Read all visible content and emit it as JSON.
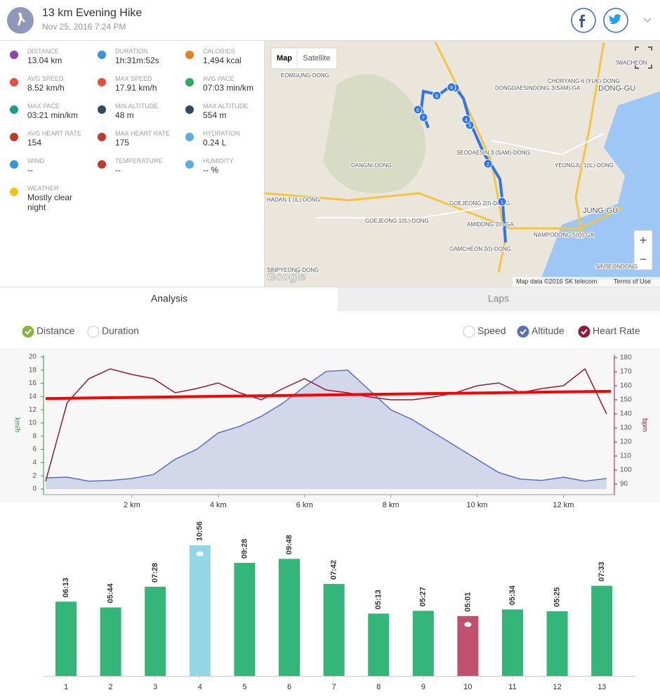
{
  "header": {
    "title": "13 km Evening Hike",
    "date": "Nov 25, 2016 7:24 PM"
  },
  "stats": [
    {
      "label": "DISTANCE",
      "value": "13.04 km"
    },
    {
      "label": "DURATION",
      "value": "1h:31m:52s"
    },
    {
      "label": "CALORIES",
      "value": "1,494 kcal"
    },
    {
      "label": "AVG SPEED",
      "value": "8.52 km/h"
    },
    {
      "label": "MAX SPEED",
      "value": "17.91 km/h"
    },
    {
      "label": "AVG PACE",
      "value": "07:03 min/km"
    },
    {
      "label": "MAX PACE",
      "value": "03:21 min/km"
    },
    {
      "label": "MIN ALTITUDE",
      "value": "48 m"
    },
    {
      "label": "MAX ALTITUDE",
      "value": "554 m"
    },
    {
      "label": "AVG HEART RATE",
      "value": "154"
    },
    {
      "label": "MAX HEART RATE",
      "value": "175"
    },
    {
      "label": "HYDRATION",
      "value": "0.24 L"
    },
    {
      "label": "WIND",
      "value": "--"
    },
    {
      "label": "TEMPERATURE",
      "value": "--"
    },
    {
      "label": "HUMIDITY",
      "value": "-- %"
    },
    {
      "label": "WEATHER",
      "value": "Mostly clear night"
    }
  ],
  "map": {
    "tabs": [
      "Map",
      "Satellite"
    ],
    "labels": [
      "EOMGUNG-DONG",
      "DANGNI-DONG",
      "DONGDAESINDONG 3(SAM)-GA",
      "CHORYANG 6 (YUK)-DONG",
      "DONG-GU",
      "SEODAESIN 3 (SAM)-DONG",
      "YEONGJU 1(IL)-DONG",
      "JUNG-GU",
      "HADAN 1 (IL)-DONG",
      "GOEJEONG 2(I)-DONG",
      "GOEJEONG 1(IL)-DONG",
      "AMIDONG 2(I)-GA",
      "NAMPODONG 5(O)-GA",
      "GAMCHEON 2(I)-DONG",
      "SINPYEONG-DONG",
      "SINSEONDONG",
      "JWACHEON"
    ],
    "markers": [
      "1",
      "2",
      "3",
      "4",
      "5",
      "6",
      "7",
      "8",
      "9"
    ],
    "logo": "Google",
    "attribution": "Map data ©2016 SK telecom",
    "terms": "Terms of Use",
    "zoom_in": "+",
    "zoom_out": "−"
  },
  "tabs": [
    "Analysis",
    "Laps"
  ],
  "toggles": [
    "Distance",
    "Duration",
    "Speed"
  ],
  "chart_data": [
    {
      "type": "line",
      "x": [
        0,
        0.5,
        1,
        1.5,
        2,
        2.5,
        3,
        3.5,
        4,
        4.5,
        5,
        5.5,
        6,
        6.5,
        7,
        7.5,
        8,
        8.5,
        9,
        9.5,
        10,
        10.5,
        11,
        11.5,
        12,
        12.5,
        13
      ],
      "xlim": [
        0,
        13.1
      ],
      "xticks": [
        {
          "value": 2,
          "label": "2 km"
        },
        {
          "value": 4,
          "label": "4 km"
        },
        {
          "value": 6,
          "label": "6 km"
        },
        {
          "value": 8,
          "label": "8 km"
        },
        {
          "value": 10,
          "label": "10 km"
        },
        {
          "value": 12,
          "label": "12 km"
        }
      ],
      "ylim": [
        0,
        20
      ],
      "yticks": [
        0,
        2,
        4,
        6,
        8,
        10,
        12,
        14,
        16,
        18,
        20
      ],
      "y2lim": [
        90,
        180
      ],
      "y2ticks": [
        90,
        100,
        110,
        120,
        130,
        140,
        150,
        160,
        170,
        180
      ],
      "ylabel": "km/h",
      "y2label": "bpm",
      "series": [
        {
          "name": "Altitude",
          "color": "#5b72b5",
          "fill": "#d3d7ea",
          "values": [
            1.7,
            1.8,
            1.2,
            1.3,
            1.6,
            2.2,
            4.5,
            6,
            8.5,
            9.5,
            11,
            13,
            15.5,
            17.8,
            18,
            15,
            12,
            10.5,
            8.5,
            6.5,
            4.5,
            2.5,
            1.5,
            1.3,
            1.8,
            1.2,
            1.6
          ]
        },
        {
          "name": "Heart Rate",
          "color": "#8e1c3c",
          "axis": "y2",
          "values": [
            92,
            148,
            165,
            172,
            168,
            165,
            155,
            158,
            162,
            155,
            150,
            158,
            165,
            157,
            155,
            152,
            150,
            150,
            152,
            155,
            160,
            162,
            155,
            158,
            160,
            172,
            140
          ]
        }
      ],
      "trend": {
        "color": "#ff0000",
        "x": [
          0,
          13.1
        ],
        "values": [
          13.7,
          14.8
        ]
      }
    },
    {
      "type": "bar",
      "categories": [
        "1",
        "2",
        "3",
        "4",
        "5",
        "6",
        "7",
        "8",
        "9",
        "10",
        "11",
        "12",
        "13"
      ],
      "values": [
        373,
        344,
        448,
        656,
        568,
        588,
        462,
        313,
        327,
        301,
        334,
        325,
        453
      ],
      "value_labels": [
        "06:13",
        "05:44",
        "07:28",
        "10:56",
        "09:28",
        "09:48",
        "07:42",
        "05:13",
        "05:27",
        "05:01",
        "05:34",
        "05:25",
        "07:33"
      ],
      "colors": [
        "#34b57a",
        "#34b57a",
        "#34b57a",
        "#93d7e6",
        "#34b57a",
        "#34b57a",
        "#34b57a",
        "#34b57a",
        "#34b57a",
        "#c0506f",
        "#34b57a",
        "#34b57a",
        "#34b57a"
      ],
      "ylim": [
        0,
        660
      ]
    }
  ]
}
